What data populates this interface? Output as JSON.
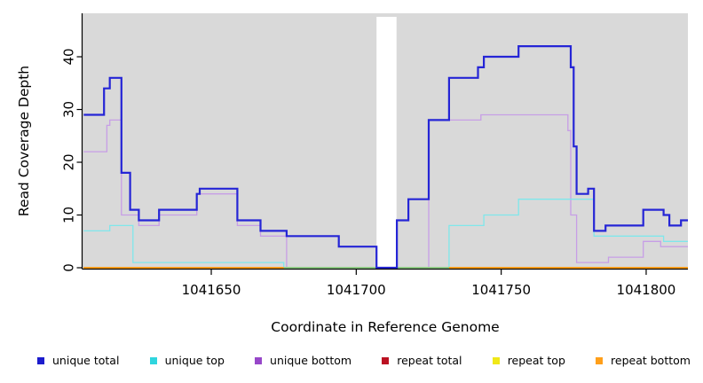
{
  "chart_data": {
    "type": "line",
    "subtype": "step",
    "title": "",
    "xlabel": "Coordinate in Reference Genome",
    "ylabel": "Read Coverage Depth",
    "xlim": [
      1041605.6,
      1041814.4
    ],
    "ylim": [
      0,
      48.24
    ],
    "x_ticks": [
      1041650,
      1041700,
      1041750,
      1041800
    ],
    "y_ticks": [
      0,
      10,
      20,
      30,
      40
    ],
    "grid": false,
    "plot_bg": "#d9d9d9",
    "axis_color": "#000000",
    "gap_region": {
      "x1": 1041707,
      "x2": 1041713.9,
      "color": "#ffffff"
    },
    "zero_overlay": {
      "x1": 1041675,
      "x2": 1041732,
      "y": 0,
      "color": "#82d596",
      "note": "cyan/yellow blend where unique lines sit at zero"
    },
    "series": [
      {
        "name": "repeat total",
        "color": "#bb1122",
        "width": 1.2,
        "points": [
          [
            1041606,
            0
          ],
          [
            1041814,
            0
          ]
        ]
      },
      {
        "name": "repeat top",
        "color": "#f0e818",
        "width": 1.2,
        "points": [
          [
            1041606,
            0
          ],
          [
            1041814,
            0
          ]
        ]
      },
      {
        "name": "unique bottom",
        "color": "#c79ee6",
        "width": 1.3,
        "points": [
          [
            1041606,
            22
          ],
          [
            1041614,
            27
          ],
          [
            1041615,
            28
          ],
          [
            1041619,
            10
          ],
          [
            1041625,
            8
          ],
          [
            1041632,
            10
          ],
          [
            1041645,
            14
          ],
          [
            1041659,
            8
          ],
          [
            1041667,
            6
          ],
          [
            1041676,
            0
          ],
          [
            1041725,
            28
          ],
          [
            1041743,
            29
          ],
          [
            1041773,
            26
          ],
          [
            1041774,
            10
          ],
          [
            1041776,
            1
          ],
          [
            1041787,
            2
          ],
          [
            1041799,
            5
          ],
          [
            1041805,
            4
          ],
          [
            1041814,
            4
          ]
        ]
      },
      {
        "name": "unique top",
        "color": "#7fe7eb",
        "width": 1.3,
        "points": [
          [
            1041606,
            7
          ],
          [
            1041615,
            8
          ],
          [
            1041623,
            1
          ],
          [
            1041675,
            0
          ],
          [
            1041732,
            8
          ],
          [
            1041744,
            10
          ],
          [
            1041756,
            13
          ],
          [
            1041782,
            6
          ],
          [
            1041806,
            5
          ],
          [
            1041814,
            5
          ]
        ]
      },
      {
        "name": "repeat bottom",
        "color": "#ff9f1a",
        "width": 2,
        "points": [
          [
            1041606,
            0
          ],
          [
            1041814,
            0
          ]
        ]
      },
      {
        "name": "unique total",
        "color": "#2525d6",
        "width": 2.2,
        "points": [
          [
            1041606,
            29
          ],
          [
            1041613,
            34
          ],
          [
            1041615,
            36
          ],
          [
            1041619,
            18
          ],
          [
            1041622,
            11
          ],
          [
            1041625,
            9
          ],
          [
            1041632,
            11
          ],
          [
            1041645,
            14
          ],
          [
            1041646,
            15
          ],
          [
            1041659,
            9
          ],
          [
            1041667,
            7
          ],
          [
            1041676,
            6
          ],
          [
            1041694,
            4
          ],
          [
            1041707,
            0
          ],
          [
            1041714,
            9
          ],
          [
            1041718,
            13
          ],
          [
            1041725,
            28
          ],
          [
            1041732,
            36
          ],
          [
            1041742,
            38
          ],
          [
            1041744,
            40
          ],
          [
            1041756,
            42
          ],
          [
            1041774,
            38
          ],
          [
            1041775,
            23
          ],
          [
            1041776,
            14
          ],
          [
            1041780,
            15
          ],
          [
            1041782,
            7
          ],
          [
            1041786,
            8
          ],
          [
            1041799,
            11
          ],
          [
            1041806,
            10
          ],
          [
            1041808,
            8
          ],
          [
            1041812,
            9
          ],
          [
            1041814,
            9
          ]
        ]
      }
    ],
    "legend": {
      "position": "bottom",
      "items": [
        {
          "label": "unique total",
          "color": "#1c1ccd"
        },
        {
          "label": "unique top",
          "color": "#2fd5de"
        },
        {
          "label": "unique bottom",
          "color": "#9747c9"
        },
        {
          "label": "repeat total",
          "color": "#bb1122"
        },
        {
          "label": "repeat top",
          "color": "#f0e818"
        },
        {
          "label": "repeat bottom",
          "color": "#ff9f1a"
        }
      ]
    }
  }
}
